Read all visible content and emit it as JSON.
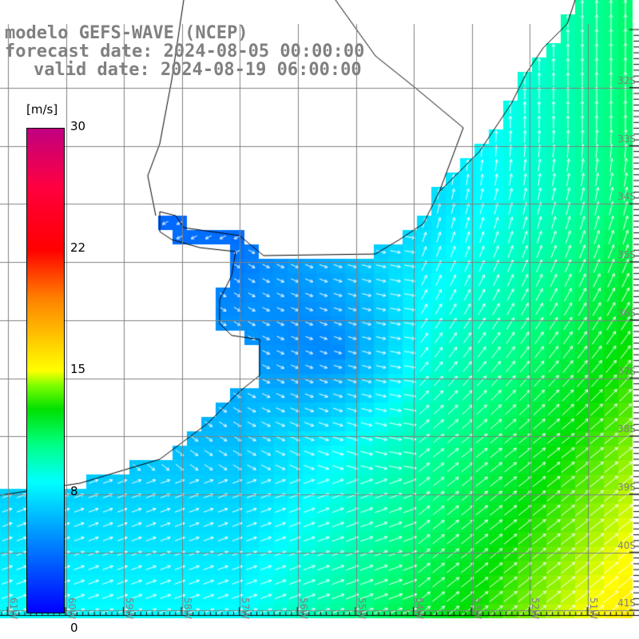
{
  "title": {
    "line1": "modelo GEFS-WAVE (NCEP)",
    "line2": "forecast date: 2024-08-05 00:00:00",
    "line3": "valid date: 2024-08-19 06:00:00"
  },
  "colorbar": {
    "unit": "[m/s]",
    "labels": [
      "30",
      "22",
      "15",
      "8",
      "0"
    ],
    "min": 0,
    "max": 30
  },
  "lat_labels": [
    "32S",
    "33S",
    "34S",
    "35S",
    "36S",
    "37S",
    "38S",
    "39S",
    "40S",
    "41S"
  ],
  "lon_labels": [
    "61W",
    "60W",
    "59W",
    "58W",
    "57W",
    "56W",
    "55W",
    "54W",
    "53W",
    "52W",
    "51W"
  ],
  "colors": {
    "land": "#ffffff",
    "grid": "#808080",
    "arrow": "#ffffff",
    "title": "#808080"
  }
}
